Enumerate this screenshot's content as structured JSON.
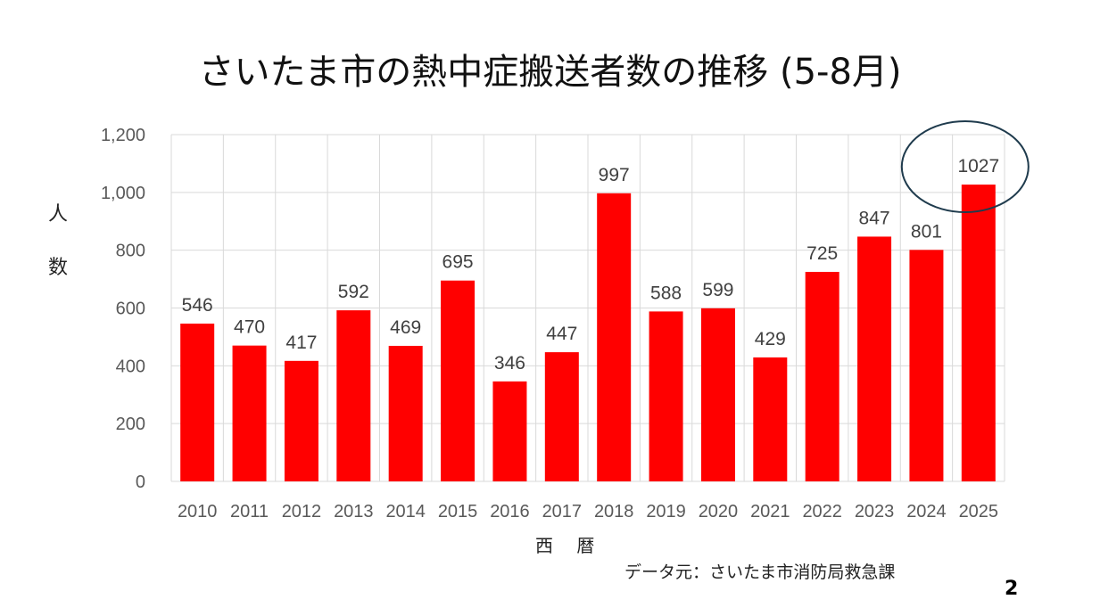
{
  "slide": {
    "title": "さいたま市の熱中症搬送者数の推移 (5-8月)",
    "y_label_line1": "人",
    "y_label_line2": "数",
    "x_label": "西 暦",
    "source": "データ元：さいたま市消防局救急課",
    "page_number": "2"
  },
  "colors": {
    "bar": "#ff0000",
    "grid": "#d9d9d9",
    "circle": "#1f3b4d"
  },
  "chart_data": {
    "type": "bar",
    "categories": [
      "2010",
      "2011",
      "2012",
      "2013",
      "2014",
      "2015",
      "2016",
      "2017",
      "2018",
      "2019",
      "2020",
      "2021",
      "2022",
      "2023",
      "2024",
      "2025"
    ],
    "values": [
      546,
      470,
      417,
      592,
      469,
      695,
      346,
      447,
      997,
      588,
      599,
      429,
      725,
      847,
      801,
      1027
    ],
    "data_labels": [
      "546",
      "470",
      "417",
      "592",
      "469",
      "695",
      "346",
      "447",
      "997",
      "588",
      "599",
      "429",
      "725",
      "847",
      "801",
      "1027"
    ],
    "y_ticks": [
      0,
      200,
      400,
      600,
      800,
      1000,
      1200
    ],
    "y_tick_labels": [
      "0",
      "200",
      "400",
      "600",
      "800",
      "1,000",
      "1,200"
    ],
    "ylim": [
      0,
      1200
    ],
    "grid": true,
    "highlighted_category": "2025"
  }
}
